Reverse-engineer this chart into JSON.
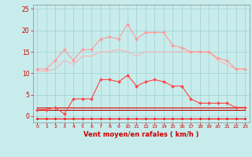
{
  "x": [
    0,
    1,
    2,
    3,
    4,
    5,
    6,
    7,
    8,
    9,
    10,
    11,
    12,
    13,
    14,
    15,
    16,
    17,
    18,
    19,
    20,
    21,
    22,
    23
  ],
  "series": [
    {
      "name": "rafales_high",
      "color": "#ff9999",
      "linewidth": 0.8,
      "marker": "D",
      "markersize": 2.0,
      "values": [
        11,
        11,
        13,
        15.5,
        13,
        15.5,
        15.5,
        18,
        18.5,
        18,
        21.5,
        18,
        19.5,
        19.5,
        19.5,
        16.5,
        16,
        15,
        15,
        15,
        13.5,
        13,
        11,
        11
      ]
    },
    {
      "name": "vent_moyen_high",
      "color": "#ffb0b0",
      "linewidth": 0.8,
      "marker": null,
      "markersize": 0,
      "values": [
        10.5,
        10.5,
        11,
        13,
        12,
        14,
        14,
        15,
        15,
        15.5,
        15,
        14,
        15,
        15,
        15,
        15,
        15,
        15,
        15,
        15,
        13,
        12,
        11,
        11
      ]
    },
    {
      "name": "rafales_med",
      "color": "#ff4444",
      "linewidth": 0.8,
      "marker": "D",
      "markersize": 2.0,
      "values": [
        1.5,
        1.5,
        2,
        0.5,
        4,
        4,
        4,
        8.5,
        8.5,
        8,
        9.5,
        7,
        8,
        8.5,
        8,
        7,
        7,
        4,
        3,
        3,
        3,
        3,
        2,
        2
      ]
    },
    {
      "name": "vent_moyen_med",
      "color": "#dd0000",
      "linewidth": 0.8,
      "marker": null,
      "markersize": 0,
      "values": [
        2,
        2,
        2,
        2,
        2,
        2,
        2,
        2,
        2,
        2,
        2,
        2,
        2,
        2,
        2,
        2,
        2,
        2,
        2,
        2,
        2,
        2,
        2,
        2
      ]
    },
    {
      "name": "vent_min",
      "color": "#bb0000",
      "linewidth": 0.8,
      "marker": null,
      "markersize": 0,
      "values": [
        1.5,
        1.5,
        1.5,
        1.5,
        1.5,
        1.5,
        1.5,
        1.5,
        1.5,
        1.5,
        1.5,
        1.5,
        1.5,
        1.5,
        1.5,
        1.5,
        1.5,
        1.5,
        1.5,
        1.5,
        1.5,
        1.5,
        1.5,
        1.5
      ]
    },
    {
      "name": "vent_near_zero",
      "color": "#ff0000",
      "linewidth": 0.8,
      "marker": "D",
      "markersize": 1.5,
      "values": [
        -0.5,
        -0.5,
        -0.5,
        -0.5,
        -0.5,
        -0.5,
        -0.5,
        -0.5,
        -0.5,
        -0.5,
        -0.5,
        -0.5,
        -0.5,
        -0.5,
        -0.5,
        -0.5,
        -0.5,
        -0.5,
        -0.5,
        -0.5,
        -0.5,
        -0.5,
        -0.5,
        -0.5
      ]
    }
  ],
  "xlabel": "Vent moyen/en rafales ( km/h )",
  "ylim": [
    -1.5,
    26
  ],
  "xlim": [
    -0.5,
    23.5
  ],
  "yticks": [
    0,
    5,
    10,
    15,
    20,
    25
  ],
  "xticks": [
    0,
    1,
    2,
    3,
    4,
    5,
    6,
    7,
    8,
    9,
    10,
    11,
    12,
    13,
    14,
    15,
    16,
    17,
    18,
    19,
    20,
    21,
    22,
    23
  ],
  "bgcolor": "#c8ecec",
  "grid_color": "#a0d0d0",
  "tick_color": "#cc0000",
  "xlabel_color": "#cc0000",
  "spine_color": "#888888"
}
